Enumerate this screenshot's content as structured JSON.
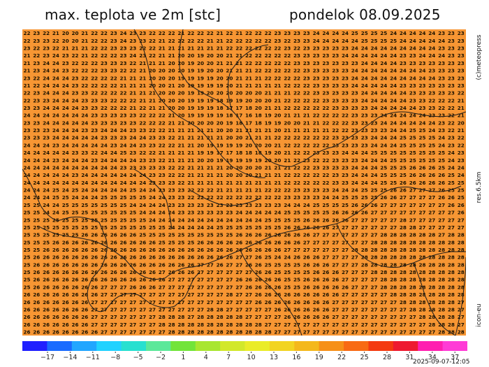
{
  "title": {
    "variable": "max. teplota ve 2m [stc]",
    "date": "pondelok 08.09.2025"
  },
  "side_labels": {
    "credit": "(c)meteopress",
    "resolution": "res.6.5km",
    "model": "icon-eu"
  },
  "timestamp": "2025-09-07-12:05",
  "colors": {
    "map_background": "#f79633",
    "coast_line": "#1a1a1a",
    "value_text": "#1a1100"
  },
  "colorbar": {
    "labels": [
      "-17",
      "-14",
      "-11",
      "-8",
      "-5",
      "-2",
      "1",
      "4",
      "7",
      "10",
      "13",
      "16",
      "19",
      "22",
      "25",
      "28",
      "31",
      "34",
      "37"
    ],
    "stops": [
      "#2020ff",
      "#1a6bff",
      "#22a6ff",
      "#22d2ff",
      "#28e0d0",
      "#5ce89a",
      "#72e43a",
      "#a8e630",
      "#d2e82a",
      "#eaec28",
      "#f2d422",
      "#f4b81c",
      "#f69018",
      "#f86a14",
      "#f43a10",
      "#ee1a30",
      "#ff1fb0",
      "#ff3bd6"
    ]
  },
  "map_grid": {
    "rows": [
      "22 23 22 21 20 20 21 22 22 23 24 23 23 22 22 22 21 22 22 22 21 22 21 22 22 22 23 23 23 23 24 24 24 24 25 25 25 25 24 24 24 24 24 23 23 23",
      "22 23 23 22 20 20 21 22 22 23 24 23 23 22 21 22 22 22 22 21 21 22 22 22 22 22 23 22 23 23 24 24 24 24 24 25 25 25 25 24 24 24 24 24 23 23",
      "23 22 23 22 21 21 21 22 22 23 23 23 22 22 21 21 21 21 21 21 21 22 22 22 22 22 22 23 22 23 23 23 23 23 24 24 24 24 24 24 24 24 24 23 23 23",
      "21 22 23 24 23 22 21 22 22 22 23 24 23 22 21 21 20 20 19 20 20 21 21 22 22 22 22 22 23 23 23 23 23 24 24 24 24 24 24 23 23 24 24 24 23 23",
      "21 23 24 24 23 22 22 22 23 23 23 22 21 21 21 20 20 19 20 20 21 21 21 22 22 22 22 22 23 23 23 23 23 23 23 24 24 24 24 23 23 23 23 23 23 23",
      "21 23 24 24 23 22 22 22 23 23 22 22 21 20 20 20 20 19 19 20 20 21 21 21 22 22 22 22 22 23 23 23 23 23 24 24 24 24 24 24 24 24 23 23 23 23",
      "23 22 24 24 24 23 22 22 22 22 21 21 21 20 20 20 19 19 19 19 20 20 21 21 21 22 22 22 22 23 23 23 23 23 24 24 24 24 24 24 24 24 24 23 23 23",
      "21 22 24 24 24 23 22 22 22 22 21 21 21 20 20 21 20 19 19 19 19 20 21 21 21 21 21 22 22 22 23 23 23 23 24 24 24 24 24 23 23 23 23 23 23 23",
      "22 23 24 24 24 23 23 22 22 22 22 21 21 21 20 20 20 19 19 20 20 20 20 20 20 21 21 21 22 22 23 23 23 23 23 24 24 24 24 24 23 23 23 23 23 22",
      "22 23 23 24 24 24 23 23 23 22 22 22 21 21 20 20 20 19 19 19 18 19 19 20 20 20 21 22 22 22 22 23 23 23 23 24 24 24 24 24 23 23 22 22 22 21",
      "23 23 24 24 24 24 23 23 22 22 22 21 22 21 21 20 20 19 19 19 18 17 17 18 20 21 21 22 22 22 22 22 23 23 23 23 24 24 24 24 24 23 23 22 22 21",
      "24 24 24 24 24 24 24 23 23 23 23 23 22 22 22 21 20 19 19 19 19 18 17 16 18 19 20 21 21 21 22 22 22 22 23 23 23 24 24 24 24 24 23 23 22 21",
      "23 23 24 24 24 24 24 23 23 23 23 23 22 22 22 21 21 20 20 20 20 19 18 17 18 19 19 20 20 21 21 22 22 22 23 23 23 24 24 24 24 24 24 23 22 20",
      "23 23 23 24 24 24 23 23 24 24 24 23 23 22 22 21 21 21 21 21 20 20 21 21 21 21 20 21 21 21 21 21 22 22 23 23 23 23 24 24 25 25 24 23 22 21",
      "23 23 23 24 24 24 24 24 23 23 23 24 24 23 23 22 21 21 21 21 21 20 20 21 21 21 22 22 22 22 22 22 23 23 23 23 24 24 24 25 25 25 25 24 23 22",
      "24 24 24 23 24 24 24 24 24 23 24 24 23 23 22 22 21 21 20 19 19 19 19 20 20 20 21 22 22 22 22 22 23 23 23 23 24 24 24 25 25 25 25 24 23 22",
      "24 24 24 24 24 23 23 22 24 24 25 23 22 22 21 21 21 21 19 19 17 17 18 18 18 19 20 21 22 22 23 23 23 24 24 24 25 25 25 25 25 25 25 25 24 23",
      "24 24 24 23 24 24 24 23 24 24 24 24 23 23 22 21 21 21 20 20 19 19 19 19 19 20 20 21 22 23 22 22 23 23 23 24 24 24 25 25 25 25 25 25 24 23",
      "24 24 24 24 24 24 24 24 24 24 23 23 23 23 23 22 22 21 21 21 21 20 20 20 20 21 21 21 22 22 23 23 23 23 24 24 24 25 25 25 26 26 26 25 24 24",
      "24 24 24 24 24 23 24 24 24 24 24 24 24 23 23 22 22 21 21 21 21 20 20 20 21 21 21 22 22 22 22 22 23 23 24 24 24 25 25 25 26 26 26 26 25 24",
      "24 24 24 24 24 24 24 24 24 24 24 24 24 23 23 23 22 21 21 21 21 21 21 21 21 21 21 22 22 22 22 22 23 23 24 24 24 25 25 26 26 26 26 26 25 25",
      "24 24 24 25 24 25 24 24 24 24 24 25 24 24 23 23 23 22 22 22 21 21 21 21 21 22 22 22 23 23 23 23 24 24 24 25 25 25 26 26 27 27 27 26 25 25",
      "24 24 24 25 25 24 24 24 25 25 25 25 25 24 24 23 23 22 22 22 22 22 22 22 22 22 22 23 23 23 23 24 24 25 25 25 25 26 26 27 27 27 27 26 26 25",
      "25 25 24 24 25 25 25 25 25 25 25 24 24 24 24 23 23 23 23 23 23 23 23 23 23 23 23 24 24 24 25 25 25 25 26 26 26 27 27 27 27 27 27 27 26 26",
      "25 25 24 24 25 25 25 25 25 25 25 25 24 24 24 24 23 23 23 23 23 23 24 24 24 24 24 25 25 25 25 25 26 26 26 26 27 27 27 27 27 27 27 27 27 26",
      "25 25 25 25 25 25 25 25 25 25 25 25 25 24 24 24 24 24 24 24 24 24 24 24 24 25 25 25 25 26 26 26 26 26 27 27 27 27 27 28 27 27 27 27 27 27",
      "25 25 25 25 25 25 25 25 25 25 25 25 25 25 25 24 24 24 24 24 25 25 25 25 25 25 25 26 26 26 26 26 27 27 27 27 27 27 27 28 28 27 27 27 27 27",
      "25 25 25 25 25 25 26 26 26 26 26 26 25 25 25 25 25 25 25 25 25 25 26 26 26 26 26 26 26 26 27 27 27 27 27 27 27 28 28 28 28 28 28 27 28 28",
      "25 25 25 26 26 26 26 26 26 26 26 26 26 26 25 25 25 25 26 26 26 26 26 26 26 26 26 26 26 27 27 27 27 27 27 27 28 28 28 28 28 28 28 28 28 28",
      "25 25 26 26 26 26 26 26 26 26 26 26 26 26 26 26 26 26 26 26 26 26 26 26 26 26 26 27 27 27 27 27 27 27 28 28 28 28 28 28 28 28 28 28 28 28",
      "25 26 26 26 26 26 26 26 26 26 26 26 26 26 26 26 26 26 26 26 26 26 27 27 26 25 24 24 26 26 26 27 27 27 27 28 28 28 28 28 28 28 28 28 28 28",
      "25 26 26 26 26 26 26 26 26 26 26 26 26 26 26 26 26 26 27 27 26 27 27 26 26 25 25 25 25 26 26 26 27 27 27 28 28 28 28 28 28 28 28 28 28 28",
      "25 26 26 26 26 26 26 26 26 26 26 26 26 26 27 26 26 26 27 27 27 27 27 27 26 26 25 25 25 25 26 26 26 27 27 27 28 28 28 28 28 28 28 28 28 28",
      "25 26 26 26 26 26 26 26 26 26 26 26 26 26 26 27 27 27 27 27 27 27 26 26 26 26 26 25 25 26 26 26 26 27 27 27 27 28 28 28 28 28 28 28 28 28",
      "25 26 26 26 26 26 26 26 27 27 27 26 26 26 27 27 27 27 27 27 27 27 27 26 26 26 26 25 25 26 26 26 26 26 27 27 27 28 28 28 28 28 28 28 28 28",
      "26 26 26 26 26 26 26 26 27 27 27 27 27 27 27 27 27 27 27 27 27 28 27 27 26 26 26 26 26 26 26 26 26 27 27 27 27 27 28 28 28 28 28 28 28 28",
      "26 26 26 26 26 26 26 27 27 27 27 27 27 27 27 27 27 27 27 27 27 27 27 27 26 26 26 26 26 26 26 26 27 27 27 27 27 27 27 28 28 28 28 28 28 27",
      "26 26 26 26 26 26 26 27 27 27 27 27 27 27 27 27 27 27 27 28 28 27 27 27 27 27 26 26 26 26 26 26 27 27 27 27 27 27 27 27 28 28 28 28 28 27",
      "26 26 26 26 26 26 26 27 27 27 27 27 27 27 28 28 28 27 28 28 28 28 28 27 27 27 27 26 26 26 26 26 27 27 27 27 27 27 27 27 27 28 28 28 28 27",
      "26 26 26 26 26 26 26 27 27 27 27 27 27 27 28 28 28 28 28 28 28 28 28 28 28 27 27 27 27 27 27 27 27 27 27 27 27 27 27 27 27 27 28 28 28 27",
      "26 26 26 26 26 26 26 26 27 27 27 27 27 27 27 28 28 28 28 28 28 28 28 28 28 28 27 27 27 27 27 27 27 27 27 27 27 27 27 27 27 27 27 28 28 28"
    ]
  }
}
